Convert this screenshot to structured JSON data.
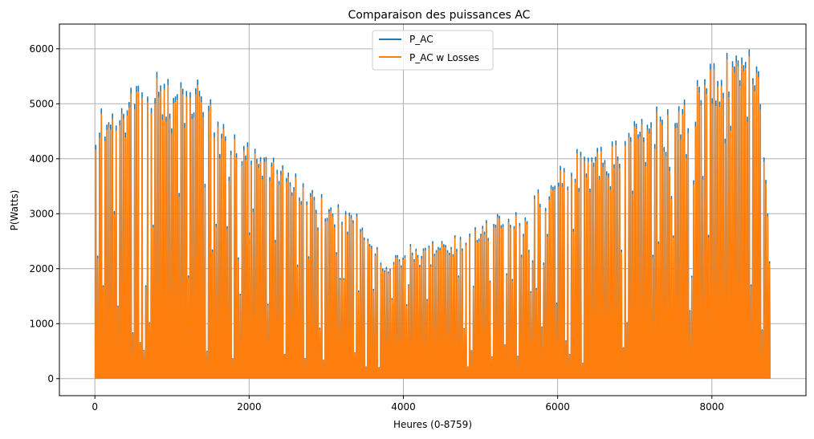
{
  "chart_data": {
    "type": "line",
    "title": "Comparaison des puissances AC",
    "xlabel": "Heures (0-8759)",
    "ylabel": "P(Watts)",
    "xlim": [
      -460,
      9220
    ],
    "ylim": [
      -310,
      6450
    ],
    "x_ticks": [
      0,
      2000,
      4000,
      6000,
      8000
    ],
    "y_ticks": [
      0,
      1000,
      2000,
      3000,
      4000,
      5000,
      6000
    ],
    "x_tick_labels": [
      "0",
      "2000",
      "4000",
      "6000",
      "8000"
    ],
    "y_tick_labels": [
      "0",
      "1000",
      "2000",
      "3000",
      "4000",
      "5000",
      "6000"
    ],
    "grid": true,
    "legend_position": "top-center",
    "series": [
      {
        "name": "P_AC",
        "color": "#1f77b4"
      },
      {
        "name": "P_AC w Losses",
        "color": "#ff7f0e"
      }
    ],
    "daily_peak_envelope": {
      "x": [
        0,
        100,
        200,
        300,
        500,
        700,
        900,
        1000,
        1200,
        1400,
        1600,
        1800,
        2000,
        2200,
        2400,
        2600,
        2800,
        3000,
        3200,
        3400,
        3600,
        3800,
        4000,
        4200,
        4400,
        4600,
        4800,
        5000,
        5200,
        5400,
        5600,
        5800,
        6000,
        6200,
        6400,
        6600,
        6800,
        7000,
        7200,
        7400,
        7600,
        7800,
        8000,
        8200,
        8400,
        8600,
        8759
      ],
      "y": [
        4500,
        5200,
        5300,
        4800,
        5400,
        5700,
        5600,
        5300,
        5750,
        5400,
        4800,
        4700,
        4400,
        4200,
        3900,
        3800,
        3600,
        3400,
        3100,
        3000,
        2700,
        2200,
        2450,
        2500,
        2550,
        2600,
        2700,
        2800,
        3000,
        3200,
        3350,
        3500,
        4000,
        4200,
        4300,
        4300,
        4500,
        4700,
        4900,
        5100,
        5200,
        5400,
        5800,
        5950,
        6000,
        6150,
        2300
      ]
    },
    "envelope_note": ""
  }
}
